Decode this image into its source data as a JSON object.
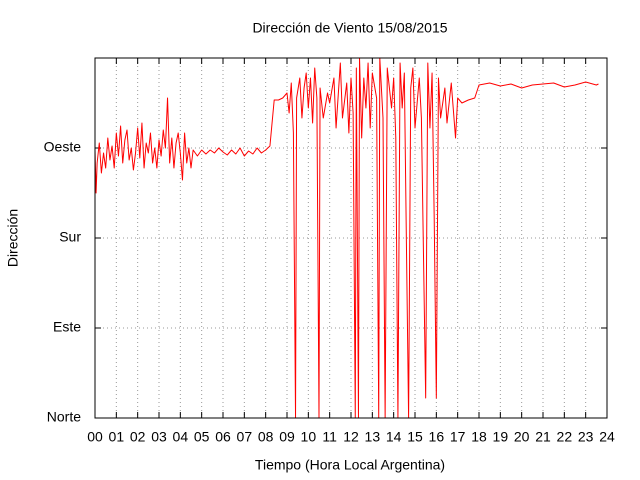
{
  "chart_data": {
    "type": "line",
    "title": "Dirección de Viento 15/08/2015",
    "xlabel": "Tiempo (Hora Local Argentina)",
    "ylabel": "Dirección",
    "color": "#ff0000",
    "grid": true,
    "xlim": [
      0,
      24
    ],
    "ylim": [
      0,
      360
    ],
    "xticks": [
      {
        "value": 0,
        "label": "00"
      },
      {
        "value": 1,
        "label": "01"
      },
      {
        "value": 2,
        "label": "02"
      },
      {
        "value": 3,
        "label": "03"
      },
      {
        "value": 4,
        "label": "04"
      },
      {
        "value": 5,
        "label": "05"
      },
      {
        "value": 6,
        "label": "06"
      },
      {
        "value": 7,
        "label": "07"
      },
      {
        "value": 8,
        "label": "08"
      },
      {
        "value": 9,
        "label": "09"
      },
      10,
      11,
      12,
      13,
      14,
      15,
      16,
      17,
      18,
      19,
      20,
      21,
      22,
      23,
      24
    ],
    "yticks": [
      {
        "value": 0,
        "label": "Norte"
      },
      {
        "value": 90,
        "label": "Este"
      },
      {
        "value": 180,
        "label": "Sur"
      },
      {
        "value": 270,
        "label": "Oeste"
      }
    ],
    "x": [
      0.0,
      0.05,
      0.1,
      0.2,
      0.3,
      0.4,
      0.5,
      0.6,
      0.7,
      0.8,
      0.9,
      1.0,
      1.1,
      1.2,
      1.3,
      1.4,
      1.5,
      1.6,
      1.7,
      1.8,
      1.9,
      2.0,
      2.1,
      2.2,
      2.3,
      2.4,
      2.5,
      2.6,
      2.7,
      2.8,
      2.9,
      3.0,
      3.1,
      3.2,
      3.3,
      3.4,
      3.5,
      3.6,
      3.7,
      3.8,
      3.9,
      4.0,
      4.1,
      4.2,
      4.3,
      4.4,
      4.5,
      4.6,
      4.8,
      5.0,
      5.2,
      5.4,
      5.6,
      5.8,
      6.0,
      6.2,
      6.4,
      6.6,
      6.8,
      7.0,
      7.2,
      7.4,
      7.6,
      7.8,
      8.0,
      8.2,
      8.4,
      8.6,
      8.8,
      9.0,
      9.1,
      9.2,
      9.3,
      9.4,
      9.45,
      9.6,
      9.7,
      9.8,
      9.9,
      10.0,
      10.1,
      10.2,
      10.3,
      10.4,
      10.5,
      10.55,
      10.7,
      10.9,
      11.0,
      11.2,
      11.3,
      11.5,
      11.6,
      11.8,
      11.9,
      12.0,
      12.1,
      12.2,
      12.25,
      12.35,
      12.4,
      12.5,
      12.6,
      12.7,
      12.8,
      12.9,
      13.0,
      13.2,
      13.3,
      13.35,
      13.5,
      13.6,
      13.7,
      13.9,
      14.0,
      14.1,
      14.2,
      14.3,
      14.4,
      14.5,
      14.6,
      14.7,
      14.8,
      14.9,
      15.0,
      15.2,
      15.3,
      15.5,
      15.6,
      15.7,
      15.8,
      15.9,
      16.0,
      16.1,
      16.2,
      16.4,
      16.5,
      16.7,
      16.9,
      17.0,
      17.2,
      17.5,
      17.8,
      18.0,
      18.5,
      19.0,
      19.5,
      20.0,
      20.5,
      21.0,
      21.5,
      22.0,
      22.5,
      23.0,
      23.5,
      23.6
    ],
    "values": [
      268,
      225,
      255,
      275,
      245,
      265,
      250,
      280,
      258,
      272,
      250,
      285,
      262,
      292,
      255,
      278,
      288,
      258,
      270,
      248,
      265,
      290,
      260,
      295,
      250,
      275,
      265,
      285,
      255,
      270,
      250,
      278,
      262,
      288,
      270,
      320,
      255,
      280,
      250,
      275,
      285,
      265,
      238,
      285,
      255,
      270,
      250,
      268,
      262,
      268,
      264,
      268,
      265,
      270,
      266,
      263,
      268,
      264,
      270,
      262,
      267,
      264,
      270,
      265,
      268,
      272,
      318,
      318,
      320,
      325,
      305,
      335,
      285,
      0,
      320,
      340,
      300,
      330,
      345,
      310,
      340,
      295,
      350,
      320,
      0,
      330,
      300,
      325,
      315,
      340,
      290,
      355,
      300,
      335,
      285,
      340,
      305,
      0,
      350,
      0,
      360,
      280,
      340,
      310,
      355,
      290,
      345,
      320,
      0,
      360,
      300,
      0,
      350,
      310,
      340,
      280,
      0,
      355,
      310,
      345,
      170,
      0,
      330,
      350,
      290,
      340,
      300,
      20,
      355,
      290,
      345,
      200,
      20,
      340,
      300,
      330,
      295,
      335,
      280,
      320,
      315,
      318,
      320,
      333,
      335,
      332,
      334,
      330,
      333,
      334,
      335,
      331,
      333,
      336,
      333,
      334
    ]
  }
}
